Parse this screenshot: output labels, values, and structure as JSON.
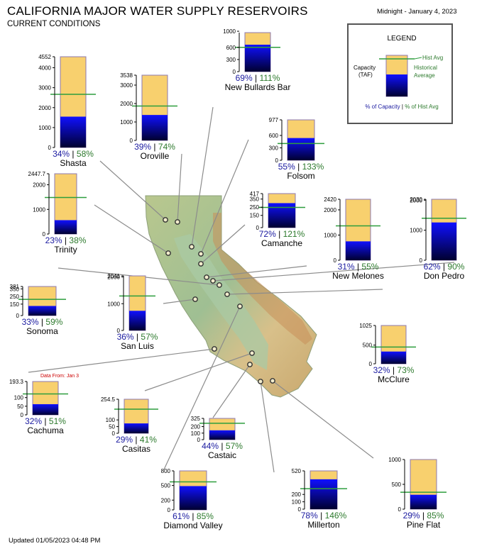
{
  "header": {
    "title": "CALIFORNIA MAJOR WATER SUPPLY RESERVOIRS",
    "subtitle": "CURRENT CONDITIONS",
    "date": "Midnight - January 4, 2023",
    "updated": "Updated 01/05/2023 04:48 PM"
  },
  "legend": {
    "title": "LEGEND",
    "capacity_label_1": "Capacity",
    "capacity_label_2": "(TAF)",
    "hist_avg": "Hist Avg",
    "historical_1": "Historical",
    "historical_2": "Average",
    "pct_capacity": "% of Capacity",
    "separator": "|",
    "pct_hist": "% of Hist Avg"
  },
  "colors": {
    "capacity_fill": "#f8d06e",
    "storage_top": "#1010ff",
    "storage_bottom": "#000030",
    "hist_avg_line": "#2e9e3e",
    "pct_capacity_text": "#1a1aa0",
    "pct_hist_text": "#2d7a2d",
    "data_note": "#cc0000"
  },
  "chart_data": {
    "type": "bar",
    "units": "TAF",
    "reservoirs": [
      {
        "name": "Shasta",
        "capacity": 4552,
        "capacity_label": "4552",
        "ticks": [
          0,
          1000,
          2000,
          3000,
          4000
        ],
        "storage_pct": 34,
        "hist_pct": 58
      },
      {
        "name": "Oroville",
        "capacity": 3538,
        "capacity_label": "3538",
        "ticks": [
          0,
          1000,
          2000,
          3000
        ],
        "storage_pct": 39,
        "hist_pct": 74
      },
      {
        "name": "New Bullards Bar",
        "capacity": 966,
        "capacity_label": "",
        "ticks": [
          0,
          300,
          600,
          1000
        ],
        "storage_pct": 69,
        "hist_pct": 111
      },
      {
        "name": "Folsom",
        "capacity": 977,
        "capacity_label": "977",
        "ticks": [
          0,
          300,
          600
        ],
        "storage_pct": 55,
        "hist_pct": 133
      },
      {
        "name": "Trinity",
        "capacity": 2447.7,
        "capacity_label": "2447.7",
        "ticks": [
          0,
          1000,
          2000
        ],
        "storage_pct": 23,
        "hist_pct": 38
      },
      {
        "name": "Camanche",
        "capacity": 417,
        "capacity_label": "417",
        "ticks": [
          0,
          150,
          250,
          350
        ],
        "storage_pct": 72,
        "hist_pct": 121
      },
      {
        "name": "New Melones",
        "capacity": 2420,
        "capacity_label": "2420",
        "ticks": [
          0,
          1000,
          2000
        ],
        "storage_pct": 31,
        "hist_pct": 55
      },
      {
        "name": "Don Pedro",
        "capacity": 2030,
        "capacity_label": "2030",
        "ticks": [
          0,
          1000,
          2000
        ],
        "storage_pct": 62,
        "hist_pct": 90
      },
      {
        "name": "Sonoma",
        "capacity": 381,
        "capacity_label": "381",
        "ticks": [
          0,
          150,
          250,
          350
        ],
        "storage_pct": 33,
        "hist_pct": 59
      },
      {
        "name": "San Luis",
        "capacity": 2041,
        "capacity_label": "2041",
        "ticks": [
          0,
          1000,
          2000
        ],
        "storage_pct": 36,
        "hist_pct": 57
      },
      {
        "name": "McClure",
        "capacity": 1025,
        "capacity_label": "1025",
        "ticks": [
          0,
          500
        ],
        "storage_pct": 32,
        "hist_pct": 73
      },
      {
        "name": "Cachuma",
        "capacity": 193.3,
        "capacity_label": "193.3",
        "ticks": [
          0,
          50,
          100
        ],
        "storage_pct": 32,
        "hist_pct": 51,
        "note": "Data From: Jan 3"
      },
      {
        "name": "Casitas",
        "capacity": 254.5,
        "capacity_label": "254.5",
        "ticks": [
          0,
          50,
          100
        ],
        "storage_pct": 29,
        "hist_pct": 41
      },
      {
        "name": "Castaic",
        "capacity": 325,
        "capacity_label": "325",
        "ticks": [
          0,
          100,
          200
        ],
        "storage_pct": 44,
        "hist_pct": 57
      },
      {
        "name": "Diamond Valley",
        "capacity": 800,
        "capacity_label": "800",
        "ticks": [
          0,
          200,
          500
        ],
        "storage_pct": 61,
        "hist_pct": 85
      },
      {
        "name": "Millerton",
        "capacity": 520,
        "capacity_label": "520",
        "ticks": [
          0,
          100,
          200
        ],
        "storage_pct": 78,
        "hist_pct": 146
      },
      {
        "name": "Pine Flat",
        "capacity": 1000,
        "capacity_label": "1000",
        "ticks": [
          0,
          500
        ],
        "storage_pct": 29,
        "hist_pct": 85
      }
    ]
  }
}
